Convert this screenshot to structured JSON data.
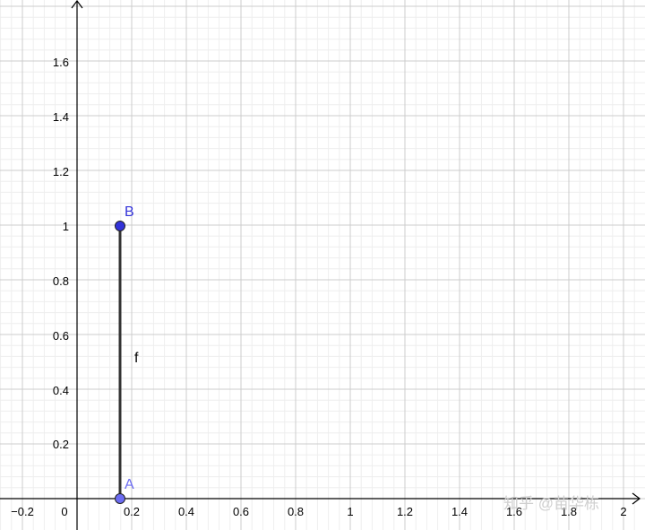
{
  "canvas": {
    "background": "#ffffff",
    "minor_grid_color": "#eeeeee",
    "major_grid_color": "#cccccc",
    "axis_color": "#000000"
  },
  "axes": {
    "x_range": [
      -0.28,
      2.07
    ],
    "y_range": [
      -0.02,
      1.81
    ],
    "x_major_step": 0.2,
    "y_major_step": 0.2,
    "minor_divisions": 5,
    "x_tick_labels": [
      "−0.2",
      "0",
      "0.2",
      "0.4",
      "0.6",
      "0.8",
      "1",
      "1.2",
      "1.4",
      "1.6",
      "1.8",
      "2"
    ],
    "y_tick_labels": [
      "0.2",
      "0.4",
      "0.6",
      "0.8",
      "1",
      "1.2",
      "1.4",
      "1.6"
    ]
  },
  "points": [
    {
      "name": "A",
      "x": 0.16,
      "y": 0,
      "color": "#6c6cf2",
      "label_color": "#6c6cf2"
    },
    {
      "name": "B",
      "x": 0.16,
      "y": 1,
      "color": "#3333d9",
      "label_color": "#3333d9"
    }
  ],
  "segment": {
    "name": "f",
    "from": "A",
    "to": "B",
    "color": "#333333"
  },
  "watermark": {
    "text": "知乎 @苗华栋"
  }
}
